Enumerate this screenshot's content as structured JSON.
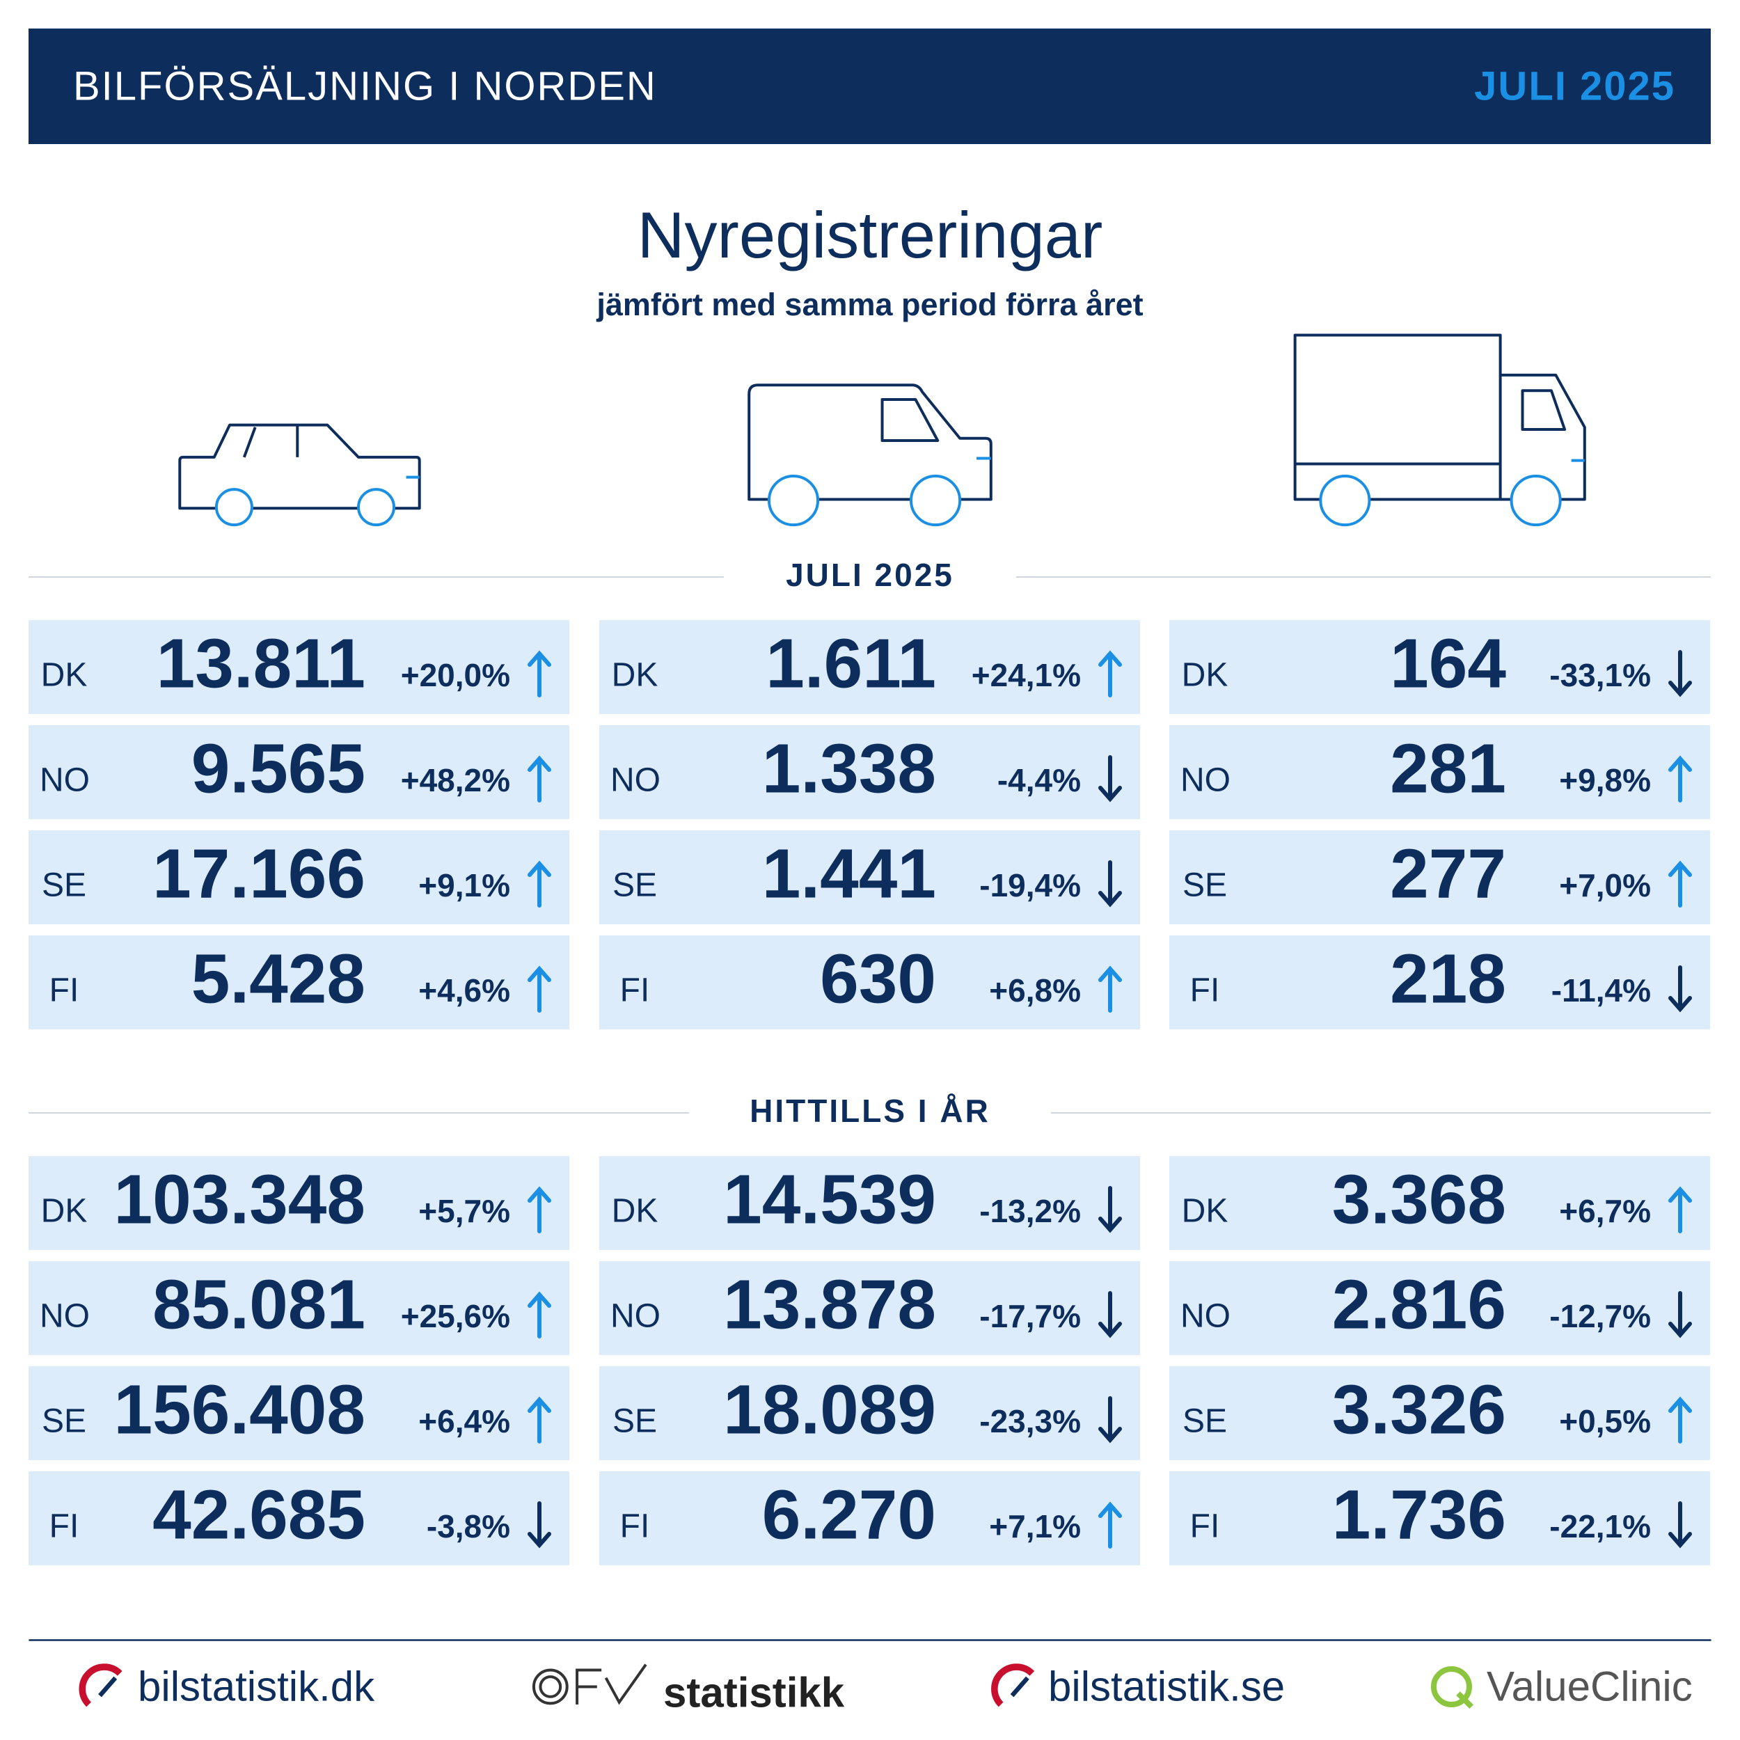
{
  "header": {
    "title": "BILFÖRSÄLJNING I NORDEN",
    "period": "JULI 2025"
  },
  "title": "Nyregistreringar",
  "subtitle": "jämfört med samma period förra året",
  "sections": [
    {
      "label": "JULI 2025",
      "columns": [
        {
          "rows": [
            {
              "country": "DK",
              "value": "13.811",
              "change": "+20,0%"
            },
            {
              "country": "NO",
              "value": "9.565",
              "change": "+48,2%"
            },
            {
              "country": "SE",
              "value": "17.166",
              "change": "+9,1%"
            },
            {
              "country": "FI",
              "value": "5.428",
              "change": "+4,6%"
            }
          ]
        },
        {
          "rows": [
            {
              "country": "DK",
              "value": "1.611",
              "change": "+24,1%"
            },
            {
              "country": "NO",
              "value": "1.338",
              "change": "-4,4%"
            },
            {
              "country": "SE",
              "value": "1.441",
              "change": "-19,4%"
            },
            {
              "country": "FI",
              "value": "630",
              "change": "+6,8%"
            }
          ]
        },
        {
          "rows": [
            {
              "country": "DK",
              "value": "164",
              "change": "-33,1%"
            },
            {
              "country": "NO",
              "value": "281",
              "change": "+9,8%"
            },
            {
              "country": "SE",
              "value": "277",
              "change": "+7,0%"
            },
            {
              "country": "FI",
              "value": "218",
              "change": "-11,4%"
            }
          ]
        }
      ]
    },
    {
      "label": "HITTILLS I ÅR",
      "columns": [
        {
          "rows": [
            {
              "country": "DK",
              "value": "103.348",
              "change": "+5,7%"
            },
            {
              "country": "NO",
              "value": "85.081",
              "change": "+25,6%"
            },
            {
              "country": "SE",
              "value": "156.408",
              "change": "+6,4%"
            },
            {
              "country": "FI",
              "value": "42.685",
              "change": "-3,8%"
            }
          ]
        },
        {
          "rows": [
            {
              "country": "DK",
              "value": "14.539",
              "change": "-13,2%"
            },
            {
              "country": "NO",
              "value": "13.878",
              "change": "-17,7%"
            },
            {
              "country": "SE",
              "value": "18.089",
              "change": "-23,3%"
            },
            {
              "country": "FI",
              "value": "6.270",
              "change": "+7,1%"
            }
          ]
        },
        {
          "rows": [
            {
              "country": "DK",
              "value": "3.368",
              "change": "+6,7%"
            },
            {
              "country": "NO",
              "value": "2.816",
              "change": "-12,7%"
            },
            {
              "country": "SE",
              "value": "3.326",
              "change": "+0,5%"
            },
            {
              "country": "FI",
              "value": "1.736",
              "change": "-22,1%"
            }
          ]
        }
      ]
    }
  ],
  "footer": {
    "logos": [
      "bilstatistik.dk",
      "statistikk",
      "bilstatistik.se",
      "ValueClinic"
    ]
  }
}
